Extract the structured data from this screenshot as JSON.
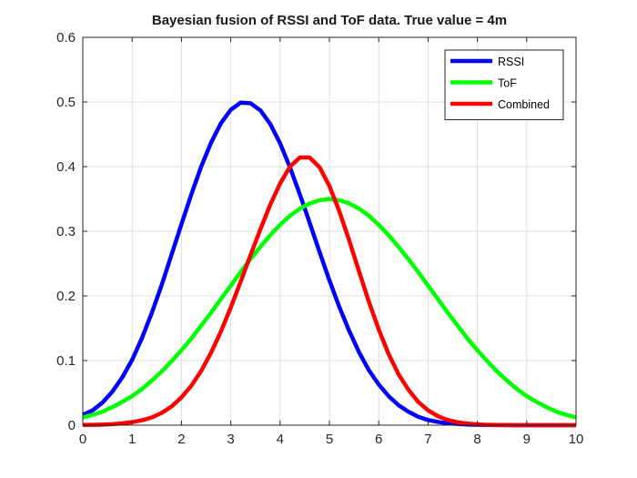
{
  "chart_data": {
    "type": "line",
    "title": "Bayesian fusion of RSSI and ToF data. True value = 4m",
    "xlabel": "",
    "ylabel": "",
    "xlim": [
      0,
      10
    ],
    "ylim": [
      0,
      0.6
    ],
    "xticks": [
      0,
      1,
      2,
      3,
      4,
      5,
      6,
      7,
      8,
      9,
      10
    ],
    "yticks": [
      0,
      0.1,
      0.2,
      0.3,
      0.4,
      0.5,
      0.6
    ],
    "ytick_labels": [
      "0",
      "0.1",
      "0.2",
      "0.3",
      "0.4",
      "0.5",
      "0.6"
    ],
    "grid": true,
    "legend_position": "top-right",
    "x": [
      0,
      0.2,
      0.4,
      0.6,
      0.8,
      1.0,
      1.2,
      1.4,
      1.6,
      1.8,
      2.0,
      2.2,
      2.4,
      2.6,
      2.8,
      3.0,
      3.2,
      3.4,
      3.6,
      3.8,
      4.0,
      4.2,
      4.4,
      4.6,
      4.8,
      5.0,
      5.2,
      5.4,
      5.6,
      5.8,
      6.0,
      6.2,
      6.4,
      6.6,
      6.8,
      7.0,
      7.2,
      7.4,
      7.6,
      7.8,
      8.0,
      8.2,
      8.4,
      8.6,
      8.8,
      9.0,
      9.2,
      9.4,
      9.6,
      9.8,
      10.0
    ],
    "series": [
      {
        "name": "RSSI",
        "color": "#0000ff",
        "values": [
          0.016,
          0.023,
          0.035,
          0.052,
          0.074,
          0.101,
          0.135,
          0.174,
          0.217,
          0.264,
          0.311,
          0.357,
          0.4,
          0.437,
          0.467,
          0.488,
          0.499,
          0.498,
          0.487,
          0.466,
          0.436,
          0.399,
          0.357,
          0.313,
          0.268,
          0.224,
          0.183,
          0.146,
          0.113,
          0.085,
          0.063,
          0.045,
          0.031,
          0.021,
          0.013,
          0.008,
          0.005,
          0.003,
          0.002,
          0.001,
          0.0005,
          0.0003,
          0.0001,
          0.0001,
          0,
          0,
          0,
          0,
          0,
          0,
          0
        ]
      },
      {
        "name": "ToF",
        "color": "#00ff00",
        "values": [
          0.012,
          0.016,
          0.021,
          0.028,
          0.036,
          0.045,
          0.056,
          0.069,
          0.083,
          0.099,
          0.116,
          0.134,
          0.154,
          0.174,
          0.195,
          0.216,
          0.237,
          0.257,
          0.276,
          0.294,
          0.31,
          0.324,
          0.335,
          0.343,
          0.348,
          0.35,
          0.348,
          0.343,
          0.335,
          0.324,
          0.31,
          0.294,
          0.276,
          0.257,
          0.237,
          0.216,
          0.195,
          0.174,
          0.154,
          0.134,
          0.116,
          0.099,
          0.083,
          0.069,
          0.056,
          0.045,
          0.036,
          0.028,
          0.021,
          0.016,
          0.012
        ]
      },
      {
        "name": "Combined",
        "color": "#ff0000",
        "values": [
          0.0003,
          0.0005,
          0.0009,
          0.0016,
          0.0028,
          0.0047,
          0.0077,
          0.012,
          0.019,
          0.029,
          0.043,
          0.061,
          0.084,
          0.112,
          0.145,
          0.182,
          0.222,
          0.263,
          0.303,
          0.341,
          0.374,
          0.4,
          0.414,
          0.414,
          0.399,
          0.37,
          0.331,
          0.286,
          0.238,
          0.191,
          0.148,
          0.11,
          0.079,
          0.055,
          0.036,
          0.023,
          0.014,
          0.008,
          0.0045,
          0.0024,
          0.0012,
          0.0006,
          0.0003,
          0.0001,
          0,
          0,
          0,
          0,
          0,
          0,
          0
        ]
      }
    ]
  }
}
